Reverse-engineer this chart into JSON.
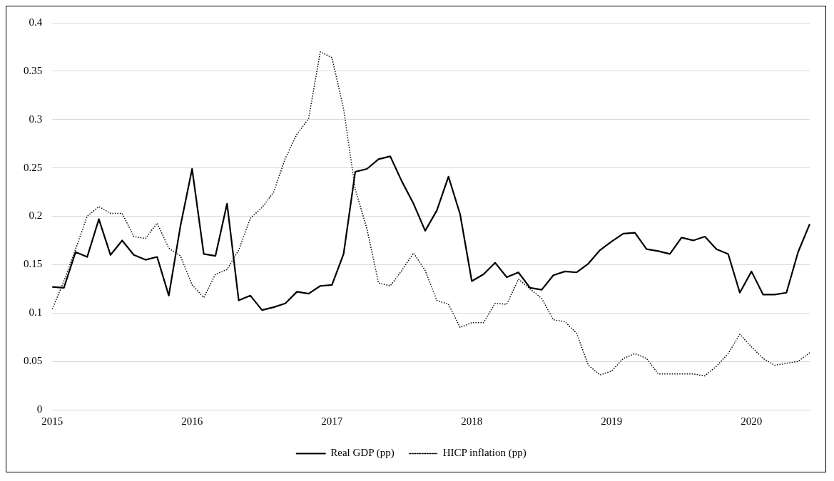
{
  "chart_data": {
    "type": "line",
    "categories": [
      "2015",
      null,
      null,
      null,
      null,
      null,
      null,
      null,
      null,
      null,
      null,
      null,
      "2016",
      null,
      null,
      null,
      null,
      null,
      null,
      null,
      null,
      null,
      null,
      null,
      "2017",
      null,
      null,
      null,
      null,
      null,
      null,
      null,
      null,
      null,
      null,
      null,
      "2018",
      null,
      null,
      null,
      null,
      null,
      null,
      null,
      null,
      null,
      null,
      null,
      "2019",
      null,
      null,
      null,
      null,
      null,
      null,
      null,
      null,
      null,
      null,
      null,
      "2020",
      null,
      null,
      null,
      null,
      null
    ],
    "series": [
      {
        "name": "Real GDP (pp)",
        "color": "#000000",
        "line_style": "solid",
        "values": [
          0.127,
          0.126,
          0.163,
          0.158,
          0.197,
          0.16,
          0.175,
          0.16,
          0.155,
          0.158,
          0.118,
          0.19,
          0.249,
          0.161,
          0.159,
          0.213,
          0.113,
          0.118,
          0.103,
          0.106,
          0.11,
          0.122,
          0.12,
          0.128,
          0.129,
          0.161,
          0.246,
          0.249,
          0.259,
          0.262,
          0.236,
          0.213,
          0.185,
          0.206,
          0.241,
          0.202,
          0.133,
          0.14,
          0.152,
          0.137,
          0.142,
          0.126,
          0.124,
          0.139,
          0.143,
          0.142,
          0.151,
          0.165,
          0.174,
          0.182,
          0.183,
          0.166,
          0.164,
          0.161,
          0.178,
          0.175,
          0.179,
          0.166,
          0.161,
          0.121,
          0.143,
          0.119,
          0.119,
          0.121,
          0.163,
          0.192
        ]
      },
      {
        "name": "HICP inflation (pp)",
        "color": "#000000",
        "line_style": "dotted",
        "values": [
          0.104,
          0.133,
          0.166,
          0.2,
          0.21,
          0.203,
          0.203,
          0.179,
          0.177,
          0.193,
          0.167,
          0.159,
          0.129,
          0.116,
          0.14,
          0.145,
          0.165,
          0.198,
          0.209,
          0.225,
          0.26,
          0.285,
          0.301,
          0.37,
          0.364,
          0.311,
          0.228,
          0.187,
          0.131,
          0.128,
          0.144,
          0.162,
          0.144,
          0.113,
          0.109,
          0.085,
          0.09,
          0.09,
          0.11,
          0.109,
          0.135,
          0.125,
          0.115,
          0.093,
          0.091,
          0.079,
          0.046,
          0.036,
          0.04,
          0.053,
          0.058,
          0.053,
          0.037,
          0.037,
          0.037,
          0.037,
          0.035,
          0.045,
          0.058,
          0.078,
          0.065,
          0.053,
          0.046,
          0.048,
          0.05,
          0.059
        ]
      }
    ],
    "ylim": [
      0,
      0.4
    ],
    "yticks": [
      0,
      0.05,
      0.1,
      0.15,
      0.2,
      0.25,
      0.3,
      0.35,
      0.4
    ],
    "grid": "y",
    "legend": "bottom",
    "marker": "none"
  }
}
